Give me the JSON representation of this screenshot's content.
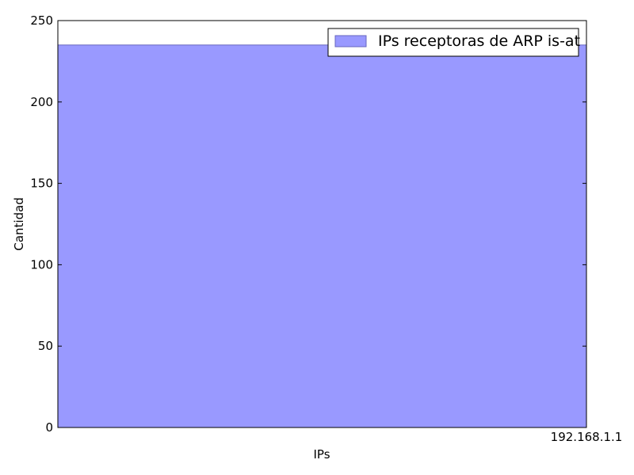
{
  "chart_data": {
    "type": "bar",
    "categories": [
      "192.168.1.1"
    ],
    "series": [
      {
        "name": "IPs receptoras de ARP is-at",
        "values": [
          235
        ],
        "color": "#9999ff",
        "edge_color": "#6666bf"
      }
    ],
    "xlabel": "IPs",
    "ylabel": "Cantidad",
    "ylim": [
      0,
      250
    ],
    "yticks": [
      "0",
      "50",
      "100",
      "150",
      "200",
      "250"
    ],
    "grid": false,
    "legend_position": "top-right"
  }
}
